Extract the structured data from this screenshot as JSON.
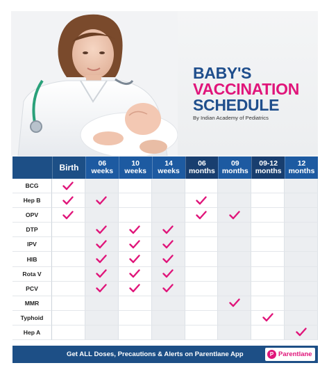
{
  "title": {
    "line1": "BABY'S",
    "line2": "VACCINATION",
    "line3": "SCHEDULE",
    "byline": "By Indian Academy of Pediatrics"
  },
  "columns": [
    {
      "line1": "Birth",
      "line2": ""
    },
    {
      "line1": "06",
      "line2": "weeks"
    },
    {
      "line1": "10",
      "line2": "weeks"
    },
    {
      "line1": "14",
      "line2": "weeks"
    },
    {
      "line1": "06",
      "line2": "months"
    },
    {
      "line1": "09",
      "line2": "months"
    },
    {
      "line1": "09-12",
      "line2": "months"
    },
    {
      "line1": "12",
      "line2": "months"
    }
  ],
  "rows": [
    {
      "vaccine": "BCG",
      "doses": [
        1,
        0,
        0,
        0,
        0,
        0,
        0,
        0
      ]
    },
    {
      "vaccine": "Hep B",
      "doses": [
        1,
        1,
        0,
        0,
        1,
        0,
        0,
        0
      ]
    },
    {
      "vaccine": "OPV",
      "doses": [
        1,
        0,
        0,
        0,
        1,
        1,
        0,
        0
      ]
    },
    {
      "vaccine": "DTP",
      "doses": [
        0,
        1,
        1,
        1,
        0,
        0,
        0,
        0
      ]
    },
    {
      "vaccine": "IPV",
      "doses": [
        0,
        1,
        1,
        1,
        0,
        0,
        0,
        0
      ]
    },
    {
      "vaccine": "HIB",
      "doses": [
        0,
        1,
        1,
        1,
        0,
        0,
        0,
        0
      ]
    },
    {
      "vaccine": "Rota V",
      "doses": [
        0,
        1,
        1,
        1,
        0,
        0,
        0,
        0
      ]
    },
    {
      "vaccine": "PCV",
      "doses": [
        0,
        1,
        1,
        1,
        0,
        0,
        0,
        0
      ]
    },
    {
      "vaccine": "MMR",
      "doses": [
        0,
        0,
        0,
        0,
        0,
        1,
        0,
        0
      ]
    },
    {
      "vaccine": "Typhoid",
      "doses": [
        0,
        0,
        0,
        0,
        0,
        0,
        1,
        0
      ]
    },
    {
      "vaccine": "Hep A",
      "doses": [
        0,
        0,
        0,
        0,
        0,
        0,
        0,
        1
      ]
    }
  ],
  "footer": {
    "text": "Get ALL Doses, Precautions & Alerts on Parentlane App",
    "brand_icon": "P",
    "brand": "Parentlane"
  },
  "colors": {
    "navy": "#1d4f86",
    "magenta": "#e0157a"
  }
}
